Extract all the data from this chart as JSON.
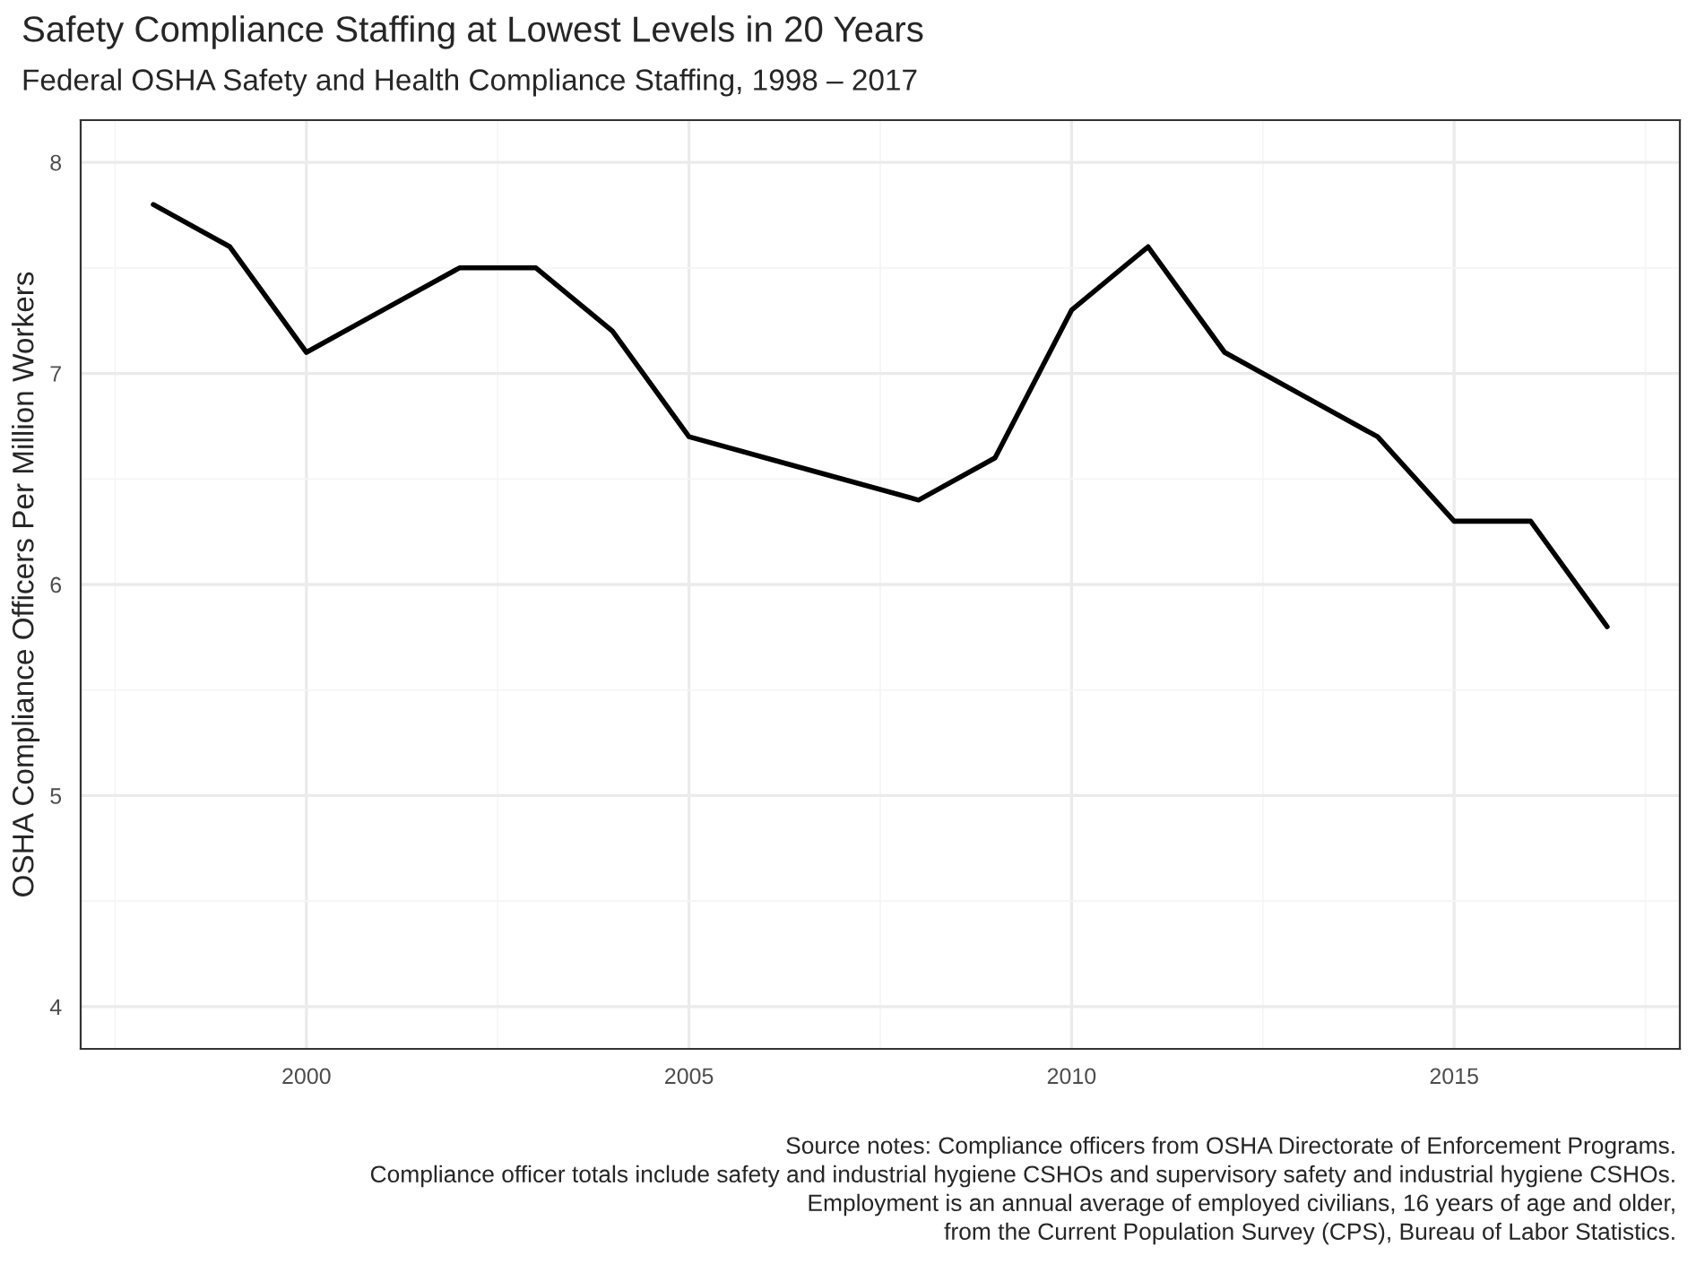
{
  "chart_data": {
    "type": "line",
    "title": "Safety Compliance Staffing at Lowest Levels in 20 Years",
    "subtitle": "Federal OSHA Safety and Health Compliance Staffing, 1998 – 2017",
    "ylabel": "OSHA Compliance Officers Per Million Workers",
    "x": [
      1998,
      1999,
      2000,
      2001,
      2002,
      2003,
      2004,
      2005,
      2006,
      2007,
      2008,
      2009,
      2010,
      2011,
      2012,
      2013,
      2014,
      2015,
      2016,
      2017
    ],
    "series": [
      {
        "color": "#000000",
        "values": [
          7.8,
          7.6,
          7.1,
          7.3,
          7.5,
          7.5,
          7.2,
          6.7,
          6.6,
          6.5,
          6.4,
          6.6,
          7.3,
          7.6,
          7.1,
          6.9,
          6.7,
          6.3,
          6.3,
          5.8
        ]
      }
    ],
    "xlim": [
      1997.05,
      2017.95
    ],
    "xticks": [
      2000,
      2005,
      2010,
      2015
    ],
    "ylim": [
      3.8,
      8.2
    ],
    "yticks": [
      4,
      5,
      6,
      7,
      8
    ],
    "grid": true,
    "marker": "none",
    "line_style": "solid",
    "annotations": [
      "Source notes: Compliance officers from OSHA Directorate of Enforcement Programs.",
      "Compliance officer totals include safety and industrial hygiene CSHOs and supervisory safety and industrial hygiene CSHOs.",
      "Employment is an annual average of employed civilians, 16 years of age and older,",
      "from the Current Population Survey (CPS), Bureau of Labor Statistics."
    ]
  }
}
